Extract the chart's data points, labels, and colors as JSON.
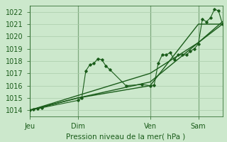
{
  "xlabel": "Pression niveau de la mer( hPa )",
  "bg_color": "#cce8cc",
  "grid_color": "#aaccaa",
  "line_color": "#1a5c1a",
  "text_color": "#1a5c1a",
  "ylim": [
    1013.5,
    1022.5
  ],
  "xlim": [
    0,
    192
  ],
  "yticks": [
    1014,
    1015,
    1016,
    1017,
    1018,
    1019,
    1020,
    1021,
    1022
  ],
  "day_labels": [
    "Jeu",
    "Dim",
    "Ven",
    "Sam"
  ],
  "day_positions": [
    0,
    48,
    120,
    168
  ],
  "series1_x": [
    0,
    4,
    8,
    12,
    48,
    52,
    56,
    60,
    64,
    68,
    72,
    76,
    80,
    96,
    112,
    120,
    124,
    128,
    132,
    136,
    140,
    144,
    148,
    152,
    156,
    160,
    164,
    168,
    172,
    176,
    180,
    184,
    188,
    192
  ],
  "series1_y": [
    1014.0,
    1014.1,
    1014.15,
    1014.2,
    1014.8,
    1015.0,
    1017.2,
    1017.7,
    1017.8,
    1018.2,
    1018.1,
    1017.6,
    1017.3,
    1016.0,
    1016.1,
    1016.0,
    1016.05,
    1017.8,
    1018.5,
    1018.5,
    1018.7,
    1018.1,
    1018.5,
    1018.5,
    1018.5,
    1018.8,
    1019.0,
    1019.4,
    1021.4,
    1021.2,
    1021.5,
    1022.2,
    1022.1,
    1021.0
  ],
  "series2_x": [
    0,
    48,
    120,
    168,
    192
  ],
  "series2_y": [
    1014.0,
    1015.0,
    1016.0,
    1021.0,
    1021.0
  ],
  "series3_x": [
    0,
    48,
    120,
    168,
    192
  ],
  "series3_y": [
    1014.0,
    1015.0,
    1016.3,
    1019.5,
    1021.0
  ],
  "series4_x": [
    0,
    48,
    120,
    168,
    192
  ],
  "series4_y": [
    1014.0,
    1015.2,
    1017.0,
    1019.5,
    1021.2
  ]
}
